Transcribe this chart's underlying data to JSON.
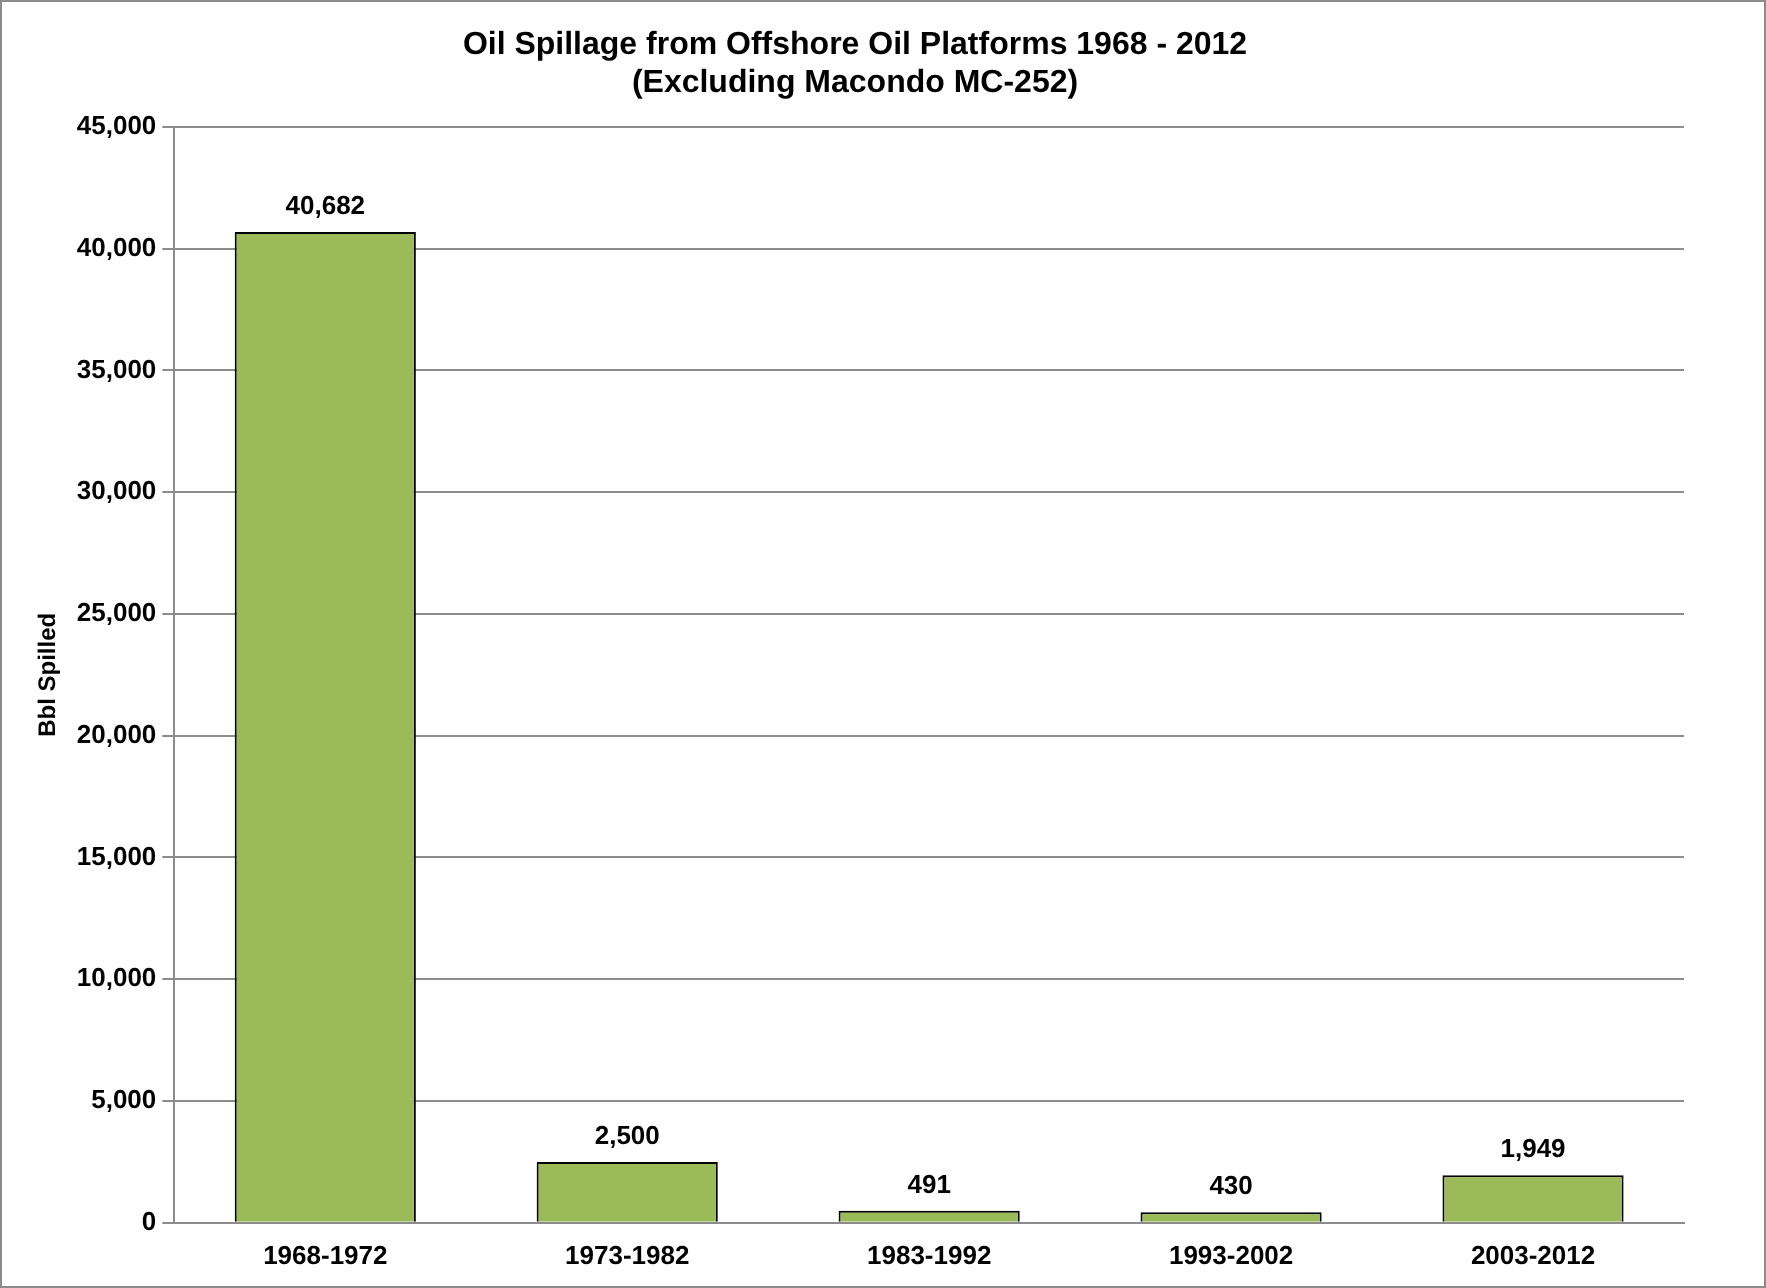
{
  "chart_data": {
    "type": "bar",
    "title": "Oil Spillage from Offshore Oil Platforms 1968 - 2012",
    "subtitle": "(Excluding Macondo MC-252)",
    "ylabel": "Bbl Spilled",
    "categories": [
      "1968-1972",
      "1973-1982",
      "1983-1992",
      "1993-2002",
      "2003-2012"
    ],
    "values": [
      40682,
      2500,
      491,
      430,
      1949
    ],
    "value_labels": [
      "40,682",
      "2,500",
      "491",
      "430",
      "1,949"
    ],
    "color": "#9bbb59",
    "ylim": [
      0,
      45000
    ],
    "yticks": [
      {
        "value": 0,
        "label": "0"
      },
      {
        "value": 5000,
        "label": "5,000"
      },
      {
        "value": 10000,
        "label": "10,000"
      },
      {
        "value": 15000,
        "label": "15,000"
      },
      {
        "value": 20000,
        "label": "20,000"
      },
      {
        "value": 25000,
        "label": "25,000"
      },
      {
        "value": 30000,
        "label": "30,000"
      },
      {
        "value": 35000,
        "label": "35,000"
      },
      {
        "value": 40000,
        "label": "40,000"
      },
      {
        "value": 45000,
        "label": "45,000"
      }
    ],
    "grid": "y"
  }
}
